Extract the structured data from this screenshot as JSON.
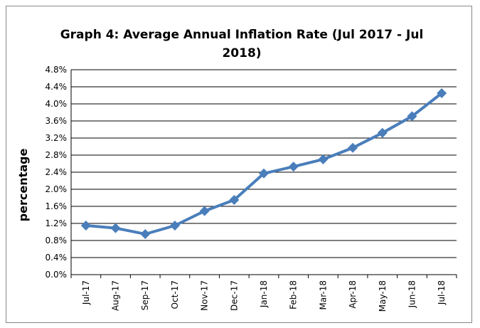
{
  "chart_data": {
    "type": "line",
    "title": "Graph 4: Average Annual Inflation Rate (Jul 2017 - Jul 2018)",
    "y_label": "percentage",
    "categories": [
      "Jul-17",
      "Aug-17",
      "Sep-17",
      "Oct-17",
      "Nov-17",
      "Dec-17",
      "Jan-18",
      "Feb-18",
      "Mar-18",
      "Apr-18",
      "May-18",
      "Jun-18",
      "Jul-18"
    ],
    "series": [
      {
        "name": "Average Annual Inflation Rate",
        "color": "#4a7ebb",
        "values": [
          1.15,
          1.09,
          0.95,
          1.15,
          1.49,
          1.75,
          2.37,
          2.53,
          2.7,
          2.97,
          3.32,
          3.71,
          4.25
        ]
      }
    ],
    "ylim": [
      0,
      4.8
    ],
    "yticks": [
      {
        "value": 0,
        "label": "0.0%"
      },
      {
        "value": 0.4,
        "label": "0.4%"
      },
      {
        "value": 0.8,
        "label": "0.8%"
      },
      {
        "value": 1.2,
        "label": "1.2%"
      },
      {
        "value": 1.6,
        "label": "1.6%"
      },
      {
        "value": 2.0,
        "label": "2.0%"
      },
      {
        "value": 2.4,
        "label": "2.4%"
      },
      {
        "value": 2.8,
        "label": "2.8%"
      },
      {
        "value": 3.2,
        "label": "3.2%"
      },
      {
        "value": 3.6,
        "label": "3.6%"
      },
      {
        "value": 4.0,
        "label": "4.0%"
      },
      {
        "value": 4.4,
        "label": "4.4%"
      },
      {
        "value": 4.8,
        "label": "4.8%"
      }
    ],
    "grid": true
  }
}
